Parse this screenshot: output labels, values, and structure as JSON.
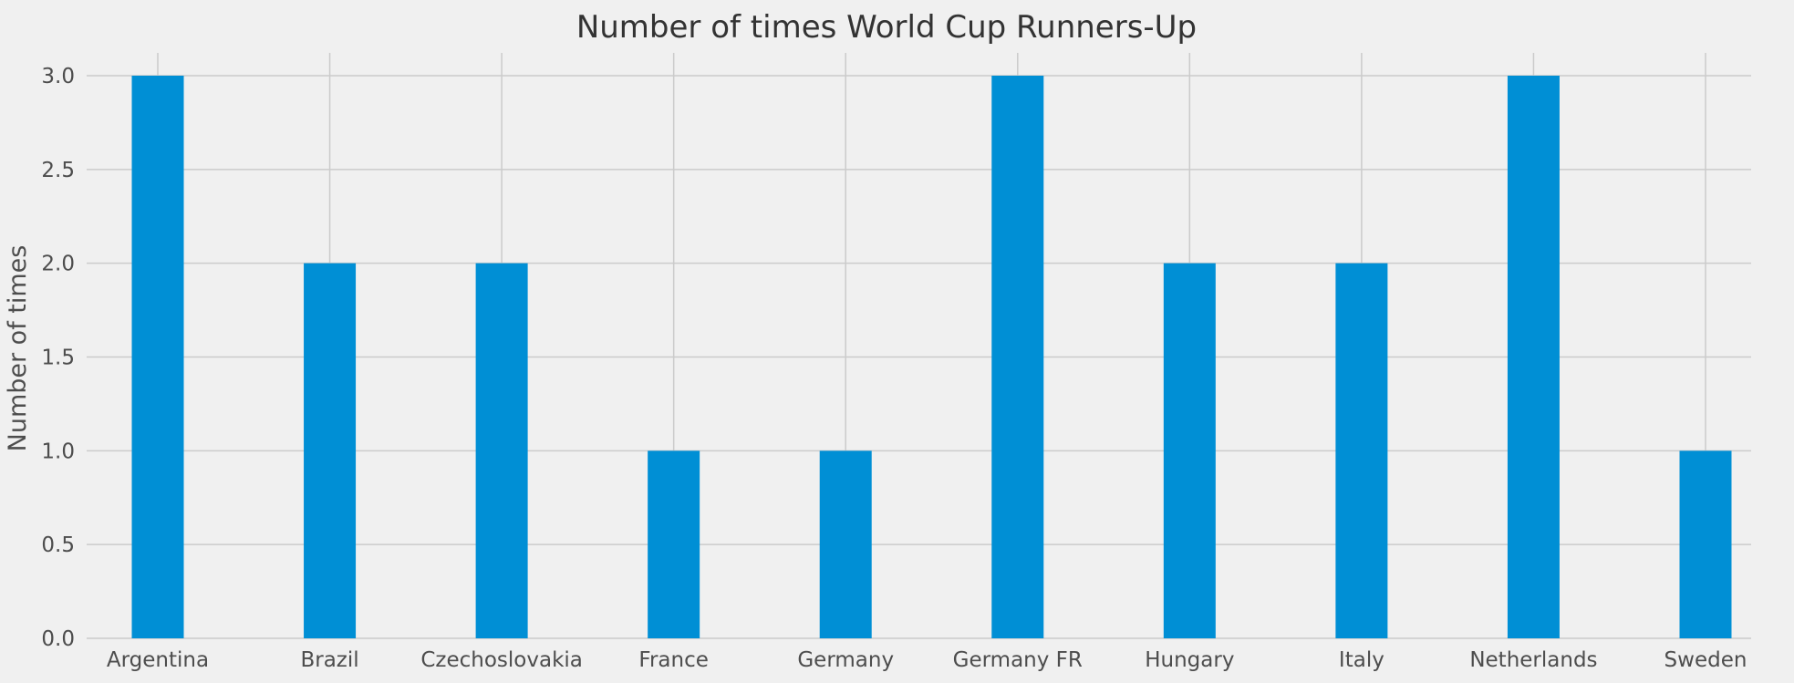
{
  "chart_data": {
    "type": "bar",
    "title": "Number of times World Cup Runners-Up",
    "xlabel": "",
    "ylabel": "Number of times",
    "categories": [
      "Argentina",
      "Brazil",
      "Czechoslovakia",
      "France",
      "Germany",
      "Germany FR",
      "Hungary",
      "Italy",
      "Netherlands",
      "Sweden"
    ],
    "values": [
      3,
      2,
      2,
      1,
      1,
      3,
      2,
      2,
      3,
      1
    ],
    "ylim": [
      0,
      3.0
    ],
    "yticks": [
      "0.0",
      "0.5",
      "1.0",
      "1.5",
      "2.0",
      "2.5",
      "3.0"
    ],
    "grid": true,
    "bar_color": "#008fd5",
    "background_color": "#f0f0f0"
  }
}
